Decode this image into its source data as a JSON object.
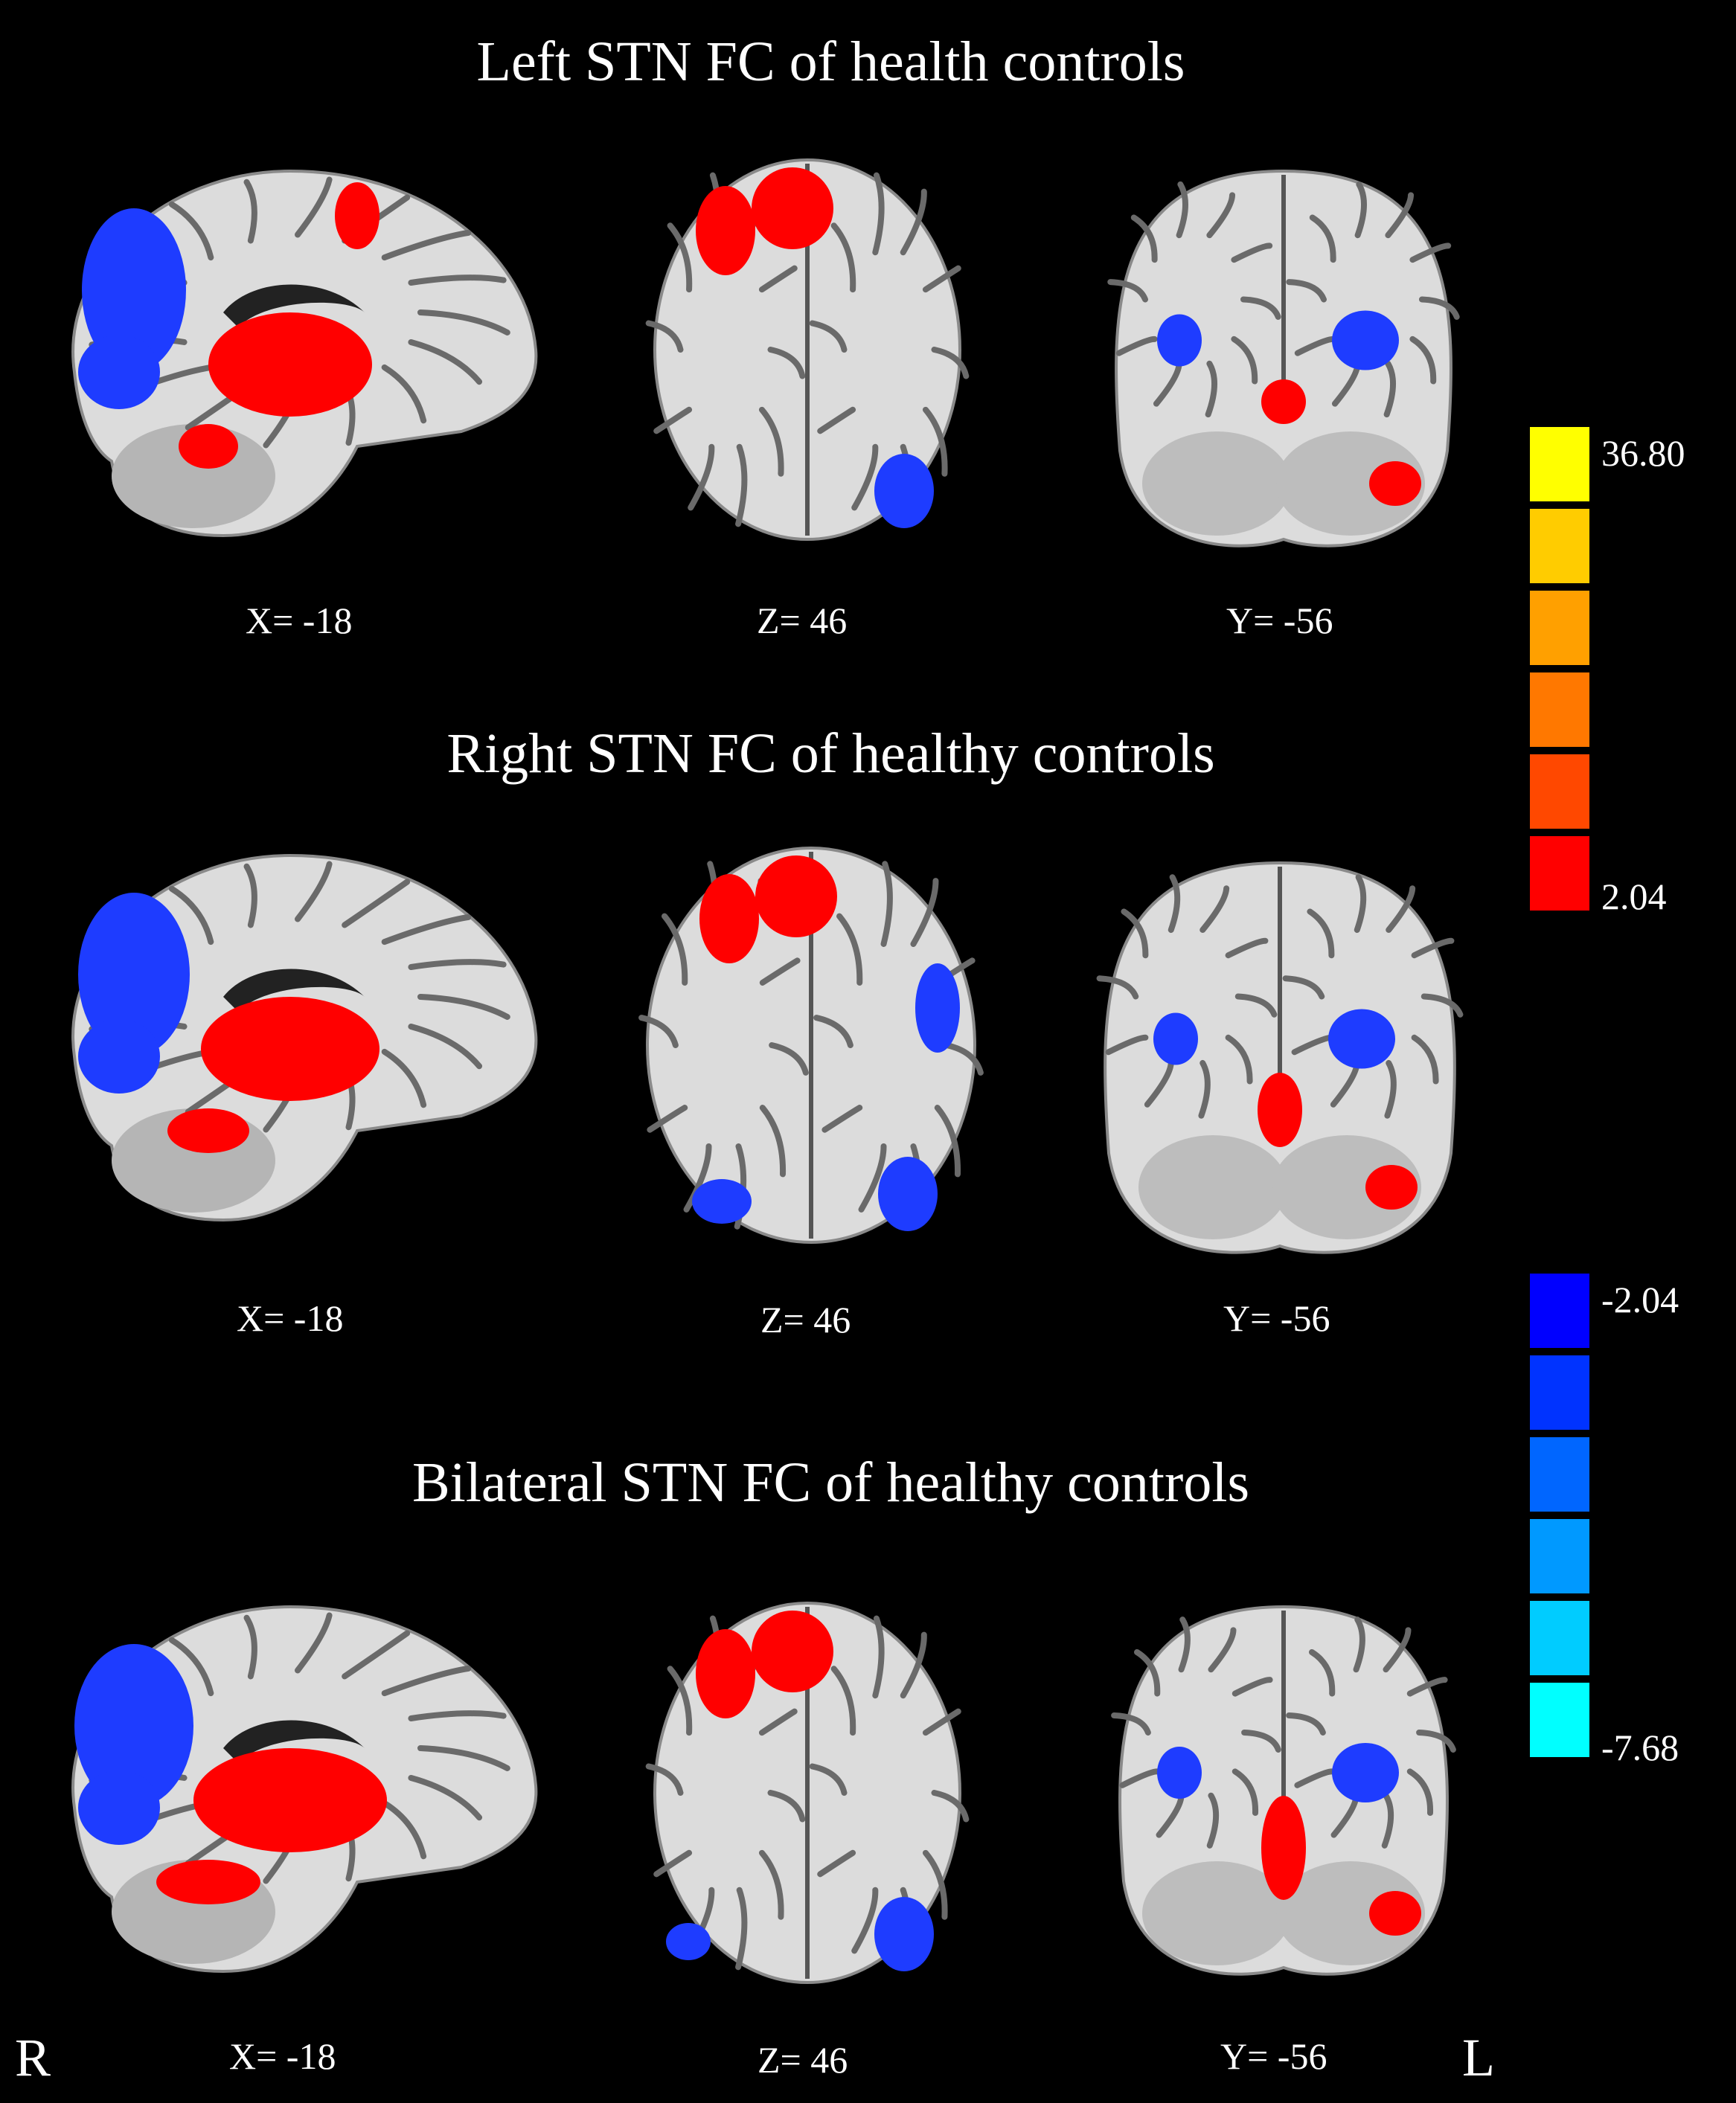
{
  "rows": [
    {
      "title": "Left STN FC of health controls",
      "coords": {
        "sagittal": "X= -18",
        "axial": "Z= 46",
        "coronal": "Y= -56"
      }
    },
    {
      "title": "Right STN FC of healthy controls",
      "coords": {
        "sagittal": "X= -18",
        "axial": "Z= 46",
        "coronal": "Y= -56"
      }
    },
    {
      "title": "Bilateral STN FC of healthy controls",
      "coords": {
        "sagittal": "X= -18",
        "axial": "Z= 46",
        "coronal": "Y= -56"
      }
    }
  ],
  "orientation": {
    "left_marker": "R",
    "right_marker": "L"
  },
  "colorbar": {
    "positive": {
      "max_label": "36.80",
      "min_label": "2.04",
      "colors": [
        "#ffff00",
        "#ffcc00",
        "#ffa000",
        "#ff7800",
        "#ff4800",
        "#ff0000"
      ]
    },
    "negative": {
      "max_label": "-2.04",
      "min_label": "-7.68",
      "colors": [
        "#0000ff",
        "#0033ff",
        "#0066ff",
        "#0099ff",
        "#00ccff",
        "#00ffff"
      ]
    }
  },
  "colors": {
    "background": "#000000",
    "positive_map": "#ff0000",
    "negative_map": "#1e3cff"
  }
}
